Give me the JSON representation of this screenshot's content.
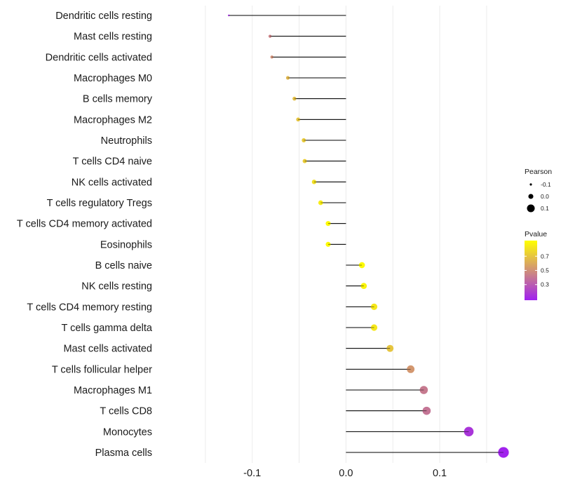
{
  "chart_data": {
    "type": "lollipop",
    "title": "",
    "xlabel": "",
    "ylabel": "",
    "xlim": [
      -0.1985,
      0.177
    ],
    "x_ticks": [
      -0.1,
      0.0,
      0.1
    ],
    "x_tick_labels": [
      "-0.1",
      "0.0",
      "0.1"
    ],
    "categories": [
      "Dendritic cells resting",
      "Mast cells resting",
      "Dendritic cells activated",
      "Macrophages M0",
      "B cells memory",
      "Macrophages M2",
      "Neutrophils",
      "T cells CD4 naive",
      "NK cells activated",
      "T cells regulatory  Tregs ",
      "T cells CD4 memory activated",
      "Eosinophils",
      "B cells naive",
      "NK cells resting",
      "T cells CD4 memory resting",
      "T cells gamma delta",
      "Mast cells activated",
      "T cells follicular helper",
      "Macrophages M1",
      "T cells CD8",
      "Monocytes",
      "Plasma cells"
    ],
    "pearson": [
      -0.125,
      -0.081,
      -0.079,
      -0.062,
      -0.055,
      -0.051,
      -0.045,
      -0.044,
      -0.034,
      -0.027,
      -0.019,
      -0.019,
      0.017,
      0.019,
      0.03,
      0.03,
      0.047,
      0.069,
      0.083,
      0.086,
      0.131,
      0.168
    ],
    "pvalue": [
      0.12,
      0.45,
      0.5,
      0.65,
      0.68,
      0.7,
      0.72,
      0.73,
      0.8,
      0.85,
      0.9,
      0.9,
      0.9,
      0.88,
      0.83,
      0.83,
      0.7,
      0.53,
      0.42,
      0.4,
      0.16,
      0.09
    ],
    "legend": {
      "size_title": "Pearson",
      "size_labels": [
        "-0.1",
        "0.0",
        "0.1"
      ],
      "size_values": [
        -0.1,
        0.0,
        0.1
      ],
      "color_title": "Pvalue",
      "color_labels": [
        "0.7",
        "0.5",
        "0.3"
      ],
      "color_values": [
        0.7,
        0.5,
        0.3
      ],
      "color_range": [
        0.08,
        0.92
      ],
      "color_low": "#A020F0",
      "color_high": "#FFFF00"
    },
    "grid": "vertical",
    "legend_position": "right"
  }
}
